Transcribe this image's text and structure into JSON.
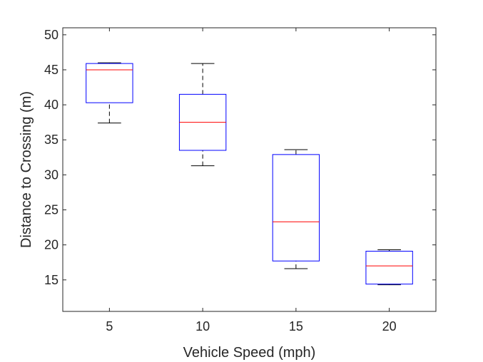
{
  "chart_data": {
    "type": "box",
    "xlabel": "Vehicle Speed (mph)",
    "ylabel": "Distance to Crossing (m)",
    "categories": [
      "5",
      "10",
      "15",
      "20"
    ],
    "ylim": [
      10.5,
      51
    ],
    "yticks": [
      15,
      20,
      25,
      30,
      35,
      40,
      45,
      50
    ],
    "grid": false,
    "boxes": [
      {
        "category": "5",
        "whisker_low": 37.4,
        "q1": 40.3,
        "median": 45.0,
        "q3": 45.9,
        "whisker_high": 46.0
      },
      {
        "category": "10",
        "whisker_low": 31.3,
        "q1": 33.5,
        "median": 37.5,
        "q3": 41.5,
        "whisker_high": 45.9
      },
      {
        "category": "15",
        "whisker_low": 16.6,
        "q1": 17.7,
        "median": 23.3,
        "q3": 32.9,
        "whisker_high": 33.6
      },
      {
        "category": "20",
        "whisker_low": 14.3,
        "q1": 14.4,
        "median": 17.0,
        "q3": 19.1,
        "whisker_high": 19.3
      }
    ],
    "colors": {
      "box": "#0000ff",
      "median": "#ff0000",
      "whisker": "#000000",
      "axis": "#262626"
    }
  }
}
